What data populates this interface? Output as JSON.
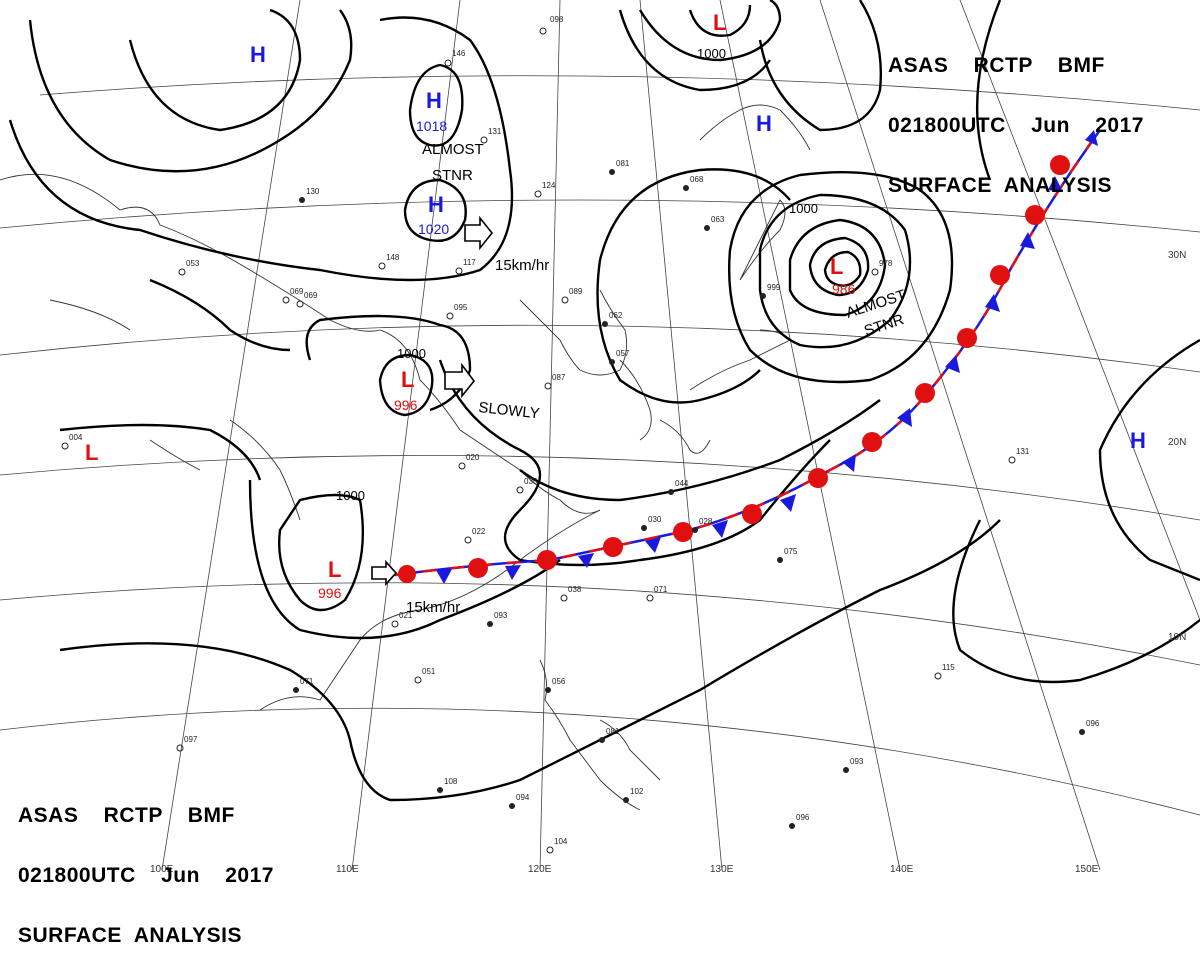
{
  "header": {
    "line1": "ASAS    RCTP    BMF",
    "line2": "021800UTC    Jun    2017",
    "line3": "SURFACE  ANALYSIS"
  },
  "pressure_centers": [
    {
      "id": "high-nw",
      "type": "H",
      "color": "#1a1adf"
    },
    {
      "id": "high-north-1",
      "type": "H",
      "value": "1018",
      "color": "#1a1adf"
    },
    {
      "id": "high-north-2",
      "type": "H",
      "value": "1020",
      "color": "#1a1adf"
    },
    {
      "id": "high-ne",
      "type": "H",
      "color": "#1a1adf"
    },
    {
      "id": "high-east",
      "type": "H",
      "color": "#1a1adf"
    },
    {
      "id": "low-top",
      "type": "L",
      "color": "#e01010"
    },
    {
      "id": "low-japan",
      "type": "L",
      "value": "986",
      "color": "#e01010"
    },
    {
      "id": "low-central",
      "type": "L",
      "value": "996",
      "color": "#e01010"
    },
    {
      "id": "low-south",
      "type": "L",
      "value": "996",
      "color": "#e01010"
    },
    {
      "id": "low-west",
      "type": "L",
      "color": "#e01010"
    }
  ],
  "isobar_labels": [
    "1000",
    "1000",
    "1000",
    "1000"
  ],
  "annotations": {
    "almost_stnr_line1": "ALMOST",
    "almost_stnr_line2": "STNR",
    "almost_stnr2_line1": "ALMOST",
    "almost_stnr2_line2": "STNR",
    "speed_north": "15km/hr",
    "slowly": "SLOWLY",
    "speed_south": "15km/hr"
  },
  "latitude_labels": [
    "30N",
    "20N",
    "10N"
  ],
  "longitude_labels": [
    "100E",
    "110E",
    "120E",
    "130E",
    "140E",
    "150E"
  ],
  "front": {
    "type": "stationary",
    "warm_color": "#e01010",
    "cold_color": "#1a1adf"
  },
  "station_samples": [
    "098",
    "146",
    "131",
    "124",
    "081",
    "068",
    "063",
    "062",
    "057",
    "089",
    "095",
    "069",
    "087",
    "148",
    "117",
    "130",
    "053",
    "069",
    "004",
    "020",
    "035",
    "022",
    "044",
    "030",
    "028",
    "075",
    "071",
    "038",
    "021",
    "093",
    "051",
    "071",
    "097",
    "108",
    "094",
    "104",
    "081",
    "056",
    "096",
    "093",
    "102",
    "096",
    "115",
    "131",
    "978",
    "999"
  ]
}
